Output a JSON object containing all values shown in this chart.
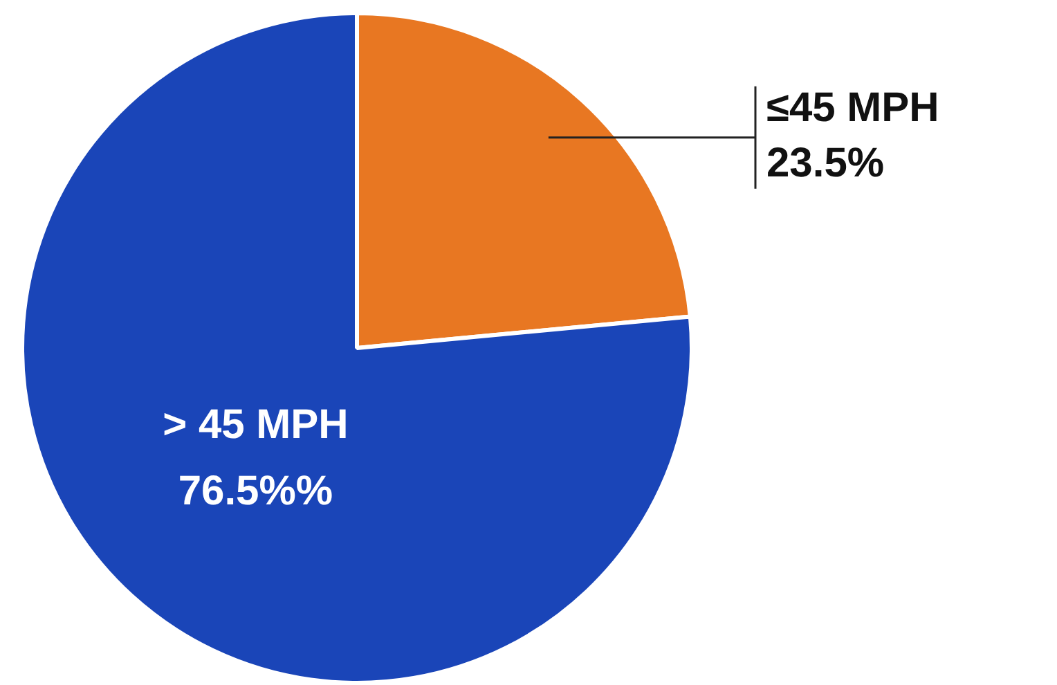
{
  "chart_data": {
    "type": "pie",
    "categories": [
      "≤45 MPH",
      "> 45 MPH"
    ],
    "values": [
      23.5,
      76.5
    ],
    "colors": [
      "#e87722",
      "#1a45b8"
    ],
    "value_labels": [
      "23.5%",
      "76.5%%"
    ],
    "legend": false
  }
}
